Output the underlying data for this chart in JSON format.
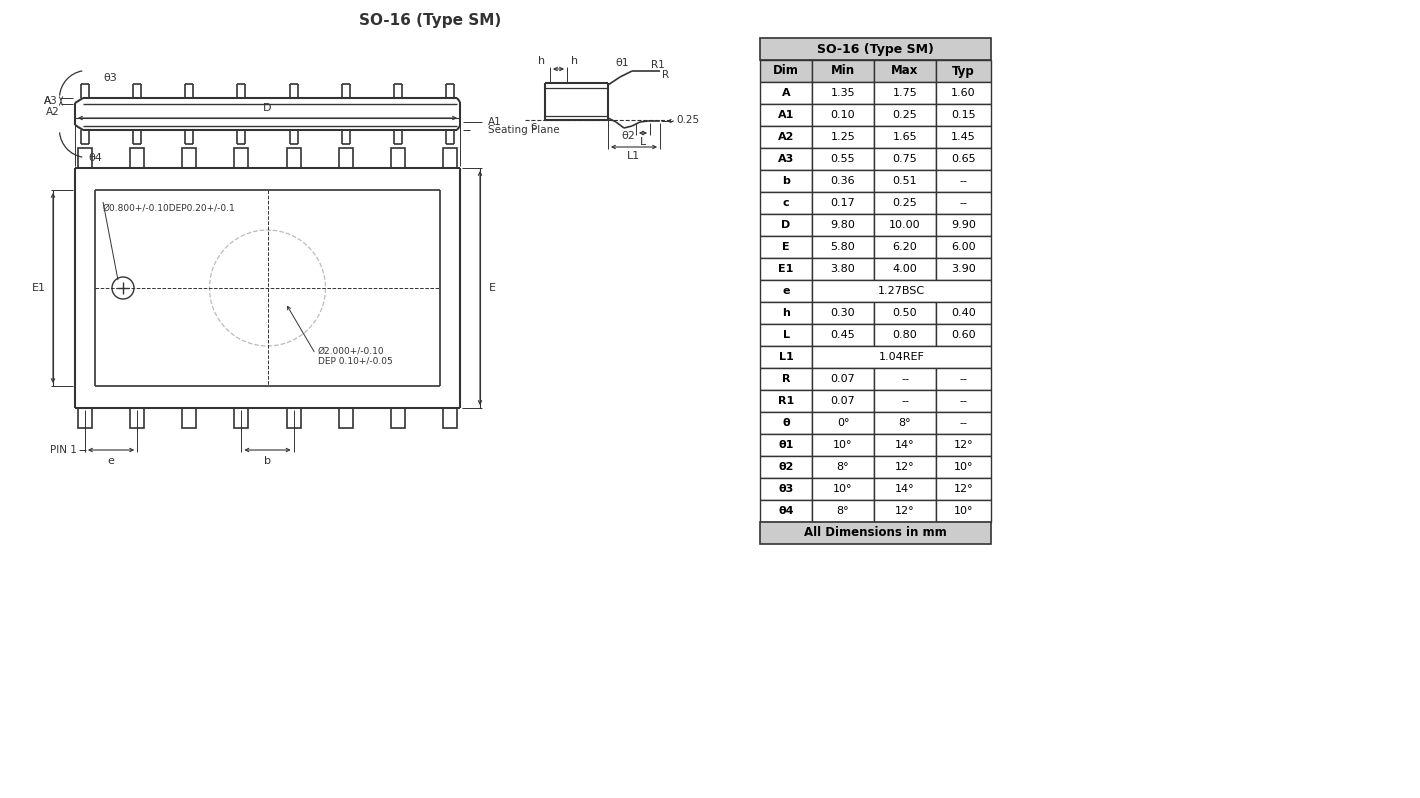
{
  "title": "SO-16 (Type SM)",
  "title_color": "#333333",
  "bg_color": "#ffffff",
  "line_color": "#333333",
  "dim_color": "#333333",
  "table_header_bg": "#cccccc",
  "table_bg": "#ffffff",
  "table_border": "#333333",
  "table_title": "SO-16 (Type SM)",
  "table_cols": [
    "Dim",
    "Min",
    "Max",
    "Typ"
  ],
  "table_rows": [
    [
      "A",
      "1.35",
      "1.75",
      "1.60"
    ],
    [
      "A1",
      "0.10",
      "0.25",
      "0.15"
    ],
    [
      "A2",
      "1.25",
      "1.65",
      "1.45"
    ],
    [
      "A3",
      "0.55",
      "0.75",
      "0.65"
    ],
    [
      "b",
      "0.36",
      "0.51",
      "--"
    ],
    [
      "c",
      "0.17",
      "0.25",
      "--"
    ],
    [
      "D",
      "9.80",
      "10.00",
      "9.90"
    ],
    [
      "E",
      "5.80",
      "6.20",
      "6.00"
    ],
    [
      "E1",
      "3.80",
      "4.00",
      "3.90"
    ],
    [
      "e",
      "1.27BSC",
      "",
      ""
    ],
    [
      "h",
      "0.30",
      "0.50",
      "0.40"
    ],
    [
      "L",
      "0.45",
      "0.80",
      "0.60"
    ],
    [
      "L1",
      "1.04REF",
      "",
      ""
    ],
    [
      "R",
      "0.07",
      "--",
      "--"
    ],
    [
      "R1",
      "0.07",
      "--",
      "--"
    ],
    [
      "θ",
      "0°",
      "8°",
      "--"
    ],
    [
      "θ1",
      "10°",
      "14°",
      "12°"
    ],
    [
      "θ2",
      "8°",
      "12°",
      "10°"
    ],
    [
      "θ3",
      "10°",
      "14°",
      "12°"
    ],
    [
      "θ4",
      "8°",
      "12°",
      "10°"
    ]
  ],
  "footer": "All Dimensions in mm",
  "note_hole1": "Ø0.800+/-0.10DEP0.20+/-0.1",
  "note_hole2": "Ø2.000+/-0.10\nDEP 0.10+/-0.05"
}
